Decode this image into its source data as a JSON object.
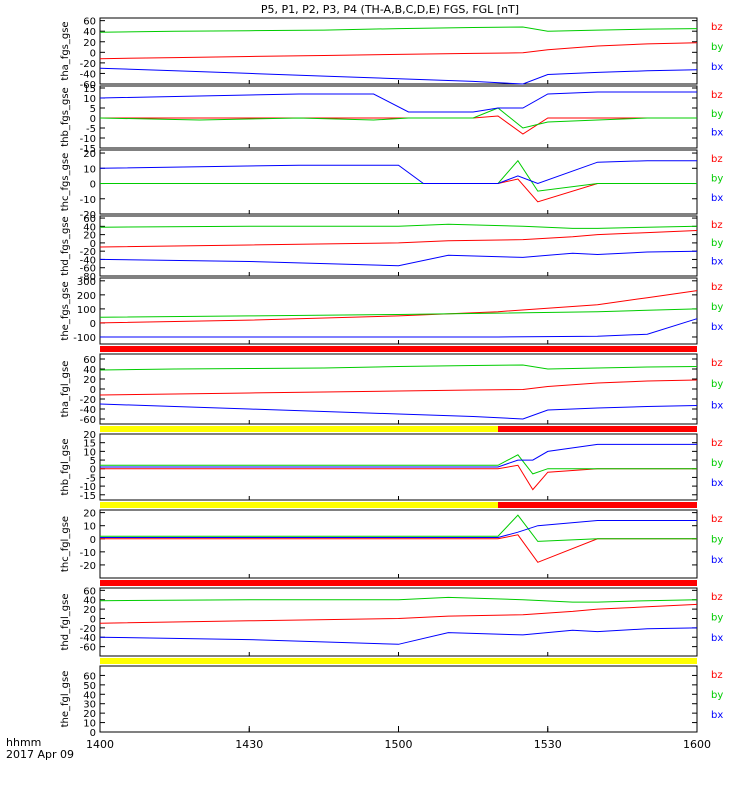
{
  "title": "P5, P1, P2, P3, P4 (TH-A,B,C,D,E) FGS, FGL [nT]",
  "colors": {
    "bz": "#ff0000",
    "by": "#00cc00",
    "bx": "#0000ff",
    "bar_red": "#ff0000",
    "bar_yellow": "#ffff00",
    "frame": "#000000"
  },
  "legend_labels": [
    "bz",
    "by",
    "bx"
  ],
  "time_axis": {
    "label_line1": "hhmm",
    "label_line2": "2017 Apr 09",
    "ticks": [
      "1400",
      "1430",
      "1500",
      "1530",
      "1600"
    ]
  },
  "chart_data": [
    {
      "type": "line",
      "ylabel": "tha_fgs_gse",
      "ylim": [
        -60,
        65
      ],
      "yticks": [
        "-60",
        "-40",
        "-20",
        "0",
        "20",
        "40",
        "60"
      ],
      "x": [
        0,
        15,
        30,
        45,
        60,
        75,
        85,
        90,
        100,
        110,
        120
      ],
      "series": [
        {
          "name": "bz",
          "values": [
            -12,
            -10,
            -8,
            -6,
            -4,
            -2,
            -1,
            5,
            12,
            16,
            18
          ]
        },
        {
          "name": "by",
          "values": [
            38,
            40,
            41,
            42,
            45,
            47,
            48,
            40,
            42,
            44,
            45
          ]
        },
        {
          "name": "bx",
          "values": [
            -30,
            -35,
            -40,
            -45,
            -50,
            -55,
            -60,
            -42,
            -38,
            -35,
            -33
          ]
        }
      ]
    },
    {
      "type": "line",
      "ylabel": "thb_fgs_gse",
      "ylim": [
        -15,
        16
      ],
      "yticks": [
        "-15",
        "-10",
        "-5",
        "0",
        "5",
        "10",
        "15"
      ],
      "x": [
        0,
        20,
        40,
        55,
        62,
        75,
        80,
        85,
        90,
        100,
        110,
        120
      ],
      "series": [
        {
          "name": "bz",
          "values": [
            0,
            0,
            0,
            0,
            0,
            0,
            1,
            -8,
            0,
            0,
            0,
            0
          ]
        },
        {
          "name": "by",
          "values": [
            0,
            -1,
            0,
            -1,
            0,
            0,
            5,
            -5,
            -2,
            -1,
            0,
            0
          ]
        },
        {
          "name": "bx",
          "values": [
            10,
            11,
            12,
            12,
            3,
            3,
            5,
            5,
            12,
            13,
            13,
            13
          ]
        }
      ]
    },
    {
      "type": "line",
      "ylabel": "thc_fgs_gse",
      "ylim": [
        -20,
        22
      ],
      "yticks": [
        "-20",
        "-10",
        "0",
        "10",
        "20"
      ],
      "x": [
        0,
        20,
        40,
        60,
        65,
        80,
        84,
        88,
        100,
        110,
        120
      ],
      "series": [
        {
          "name": "bz",
          "values": [
            0,
            0,
            0,
            0,
            0,
            0,
            3,
            -12,
            0,
            0,
            0
          ]
        },
        {
          "name": "by",
          "values": [
            0,
            0,
            0,
            0,
            0,
            0,
            15,
            -5,
            0,
            0,
            0
          ]
        },
        {
          "name": "bx",
          "values": [
            10,
            11,
            12,
            12,
            0,
            0,
            5,
            0,
            14,
            15,
            15
          ]
        }
      ]
    },
    {
      "type": "line",
      "ylabel": "thd_fgs_gse",
      "ylim": [
        -80,
        65
      ],
      "yticks": [
        "-80",
        "-60",
        "-40",
        "-20",
        "0",
        "20",
        "40",
        "60"
      ],
      "x": [
        0,
        30,
        60,
        70,
        85,
        95,
        100,
        110,
        120
      ],
      "series": [
        {
          "name": "bz",
          "values": [
            -10,
            -5,
            0,
            5,
            8,
            15,
            20,
            25,
            30
          ]
        },
        {
          "name": "by",
          "values": [
            38,
            40,
            40,
            45,
            40,
            35,
            35,
            38,
            40
          ]
        },
        {
          "name": "bx",
          "values": [
            -40,
            -45,
            -55,
            -30,
            -35,
            -25,
            -28,
            -22,
            -20
          ]
        }
      ]
    },
    {
      "type": "line",
      "ylabel": "the_fgs_gse",
      "ylim": [
        -150,
        320
      ],
      "yticks": [
        "-100",
        "0",
        "100",
        "200",
        "300"
      ],
      "x": [
        0,
        30,
        60,
        80,
        100,
        110,
        120
      ],
      "series": [
        {
          "name": "bz",
          "values": [
            0,
            20,
            50,
            80,
            130,
            180,
            230
          ]
        },
        {
          "name": "by",
          "values": [
            40,
            50,
            60,
            70,
            80,
            90,
            100
          ]
        },
        {
          "name": "bx",
          "values": [
            -100,
            -100,
            -100,
            -100,
            -95,
            -80,
            30
          ]
        }
      ]
    },
    {
      "type": "line",
      "ylabel": "tha_fgl_gse",
      "ylim": [
        -70,
        70
      ],
      "yticks": [
        "-60",
        "-40",
        "-20",
        "0",
        "20",
        "40",
        "60"
      ],
      "x": [
        0,
        15,
        30,
        45,
        60,
        75,
        85,
        90,
        100,
        110,
        120
      ],
      "series": [
        {
          "name": "bz",
          "values": [
            -12,
            -10,
            -8,
            -6,
            -4,
            -2,
            -1,
            5,
            12,
            16,
            18
          ]
        },
        {
          "name": "by",
          "values": [
            38,
            40,
            41,
            42,
            45,
            47,
            48,
            40,
            42,
            44,
            45
          ]
        },
        {
          "name": "bx",
          "values": [
            -30,
            -35,
            -40,
            -45,
            -50,
            -55,
            -60,
            -42,
            -38,
            -35,
            -33
          ]
        }
      ]
    },
    {
      "type": "line",
      "ylabel": "thb_fgl_gse",
      "ylim": [
        -18,
        20
      ],
      "yticks": [
        "-15",
        "-10",
        "-5",
        "0",
        "5",
        "10",
        "15",
        "20"
      ],
      "x": [
        0,
        40,
        80,
        84,
        87,
        90,
        100,
        110,
        120
      ],
      "series": [
        {
          "name": "bz",
          "values": [
            0,
            0,
            0,
            2,
            -12,
            -2,
            0,
            0,
            0
          ]
        },
        {
          "name": "by",
          "values": [
            2,
            2,
            2,
            8,
            -3,
            0,
            0,
            0,
            0
          ]
        },
        {
          "name": "bx",
          "values": [
            1,
            1,
            1,
            5,
            5,
            10,
            14,
            14,
            14
          ]
        }
      ]
    },
    {
      "type": "line",
      "ylabel": "thc_fgl_gse",
      "ylim": [
        -30,
        22
      ],
      "yticks": [
        "-20",
        "-10",
        "0",
        "10",
        "20"
      ],
      "x": [
        0,
        40,
        80,
        84,
        88,
        100,
        110,
        120
      ],
      "series": [
        {
          "name": "bz",
          "values": [
            0,
            0,
            0,
            3,
            -18,
            0,
            0,
            0
          ]
        },
        {
          "name": "by",
          "values": [
            2,
            2,
            2,
            18,
            -2,
            0,
            0,
            0
          ]
        },
        {
          "name": "bx",
          "values": [
            1,
            1,
            1,
            5,
            10,
            14,
            14,
            14
          ]
        }
      ]
    },
    {
      "type": "line",
      "ylabel": "thd_fgl_gse",
      "ylim": [
        -80,
        65
      ],
      "yticks": [
        "-60",
        "-40",
        "-20",
        "0",
        "20",
        "40",
        "60"
      ],
      "x": [
        0,
        30,
        60,
        70,
        85,
        95,
        100,
        110,
        120
      ],
      "series": [
        {
          "name": "bz",
          "values": [
            -10,
            -5,
            0,
            5,
            8,
            15,
            20,
            25,
            30
          ]
        },
        {
          "name": "by",
          "values": [
            38,
            40,
            40,
            45,
            40,
            35,
            35,
            38,
            40
          ]
        },
        {
          "name": "bx",
          "values": [
            -40,
            -45,
            -55,
            -30,
            -35,
            -25,
            -28,
            -22,
            -20
          ]
        }
      ]
    },
    {
      "type": "line",
      "ylabel": "the_fgl_gse",
      "ylim": [
        0,
        70
      ],
      "yticks": [
        "0",
        "10",
        "20",
        "30",
        "40",
        "50",
        "60"
      ],
      "x": [],
      "series": []
    }
  ],
  "status_bars": [
    {
      "after_panel": 4,
      "segments": [
        {
          "from": 0,
          "to": 120,
          "color": "#ff0000"
        }
      ]
    },
    {
      "after_panel": 5,
      "segments": [
        {
          "from": 0,
          "to": 80,
          "color": "#ffff00"
        },
        {
          "from": 80,
          "to": 120,
          "color": "#ff0000"
        }
      ]
    },
    {
      "after_panel": 6,
      "segments": [
        {
          "from": 0,
          "to": 80,
          "color": "#ffff00"
        },
        {
          "from": 80,
          "to": 120,
          "color": "#ff0000"
        }
      ]
    },
    {
      "after_panel": 7,
      "segments": [
        {
          "from": 0,
          "to": 120,
          "color": "#ff0000"
        }
      ]
    },
    {
      "after_panel": 8,
      "segments": [
        {
          "from": 0,
          "to": 120,
          "color": "#ffff00"
        }
      ]
    }
  ]
}
